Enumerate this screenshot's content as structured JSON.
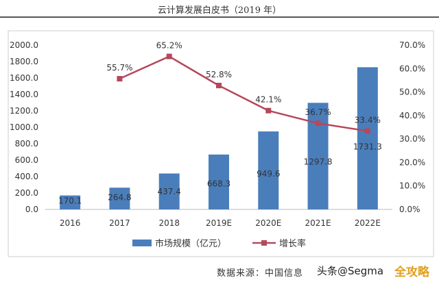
{
  "header": {
    "title": "云计算发展白皮书（2019 年）"
  },
  "footer": {
    "source": "数据来源：中国信息",
    "watermark": "头条@Segma",
    "watermark2": "全攻略"
  },
  "chart_data": {
    "type": "bar+line",
    "categories": [
      "2016",
      "2017",
      "2018",
      "2019E",
      "2020E",
      "2021E",
      "2022E"
    ],
    "series": [
      {
        "name": "市场规模（亿元）",
        "type": "bar",
        "axis": "left",
        "color": "#4a7ebb",
        "values": [
          170.1,
          264.8,
          437.4,
          668.3,
          949.6,
          1297.8,
          1731.3
        ],
        "labels": [
          "170.1",
          "264.8",
          "437.4",
          "668.3",
          "949.6",
          "1297.8",
          "1731.3"
        ]
      },
      {
        "name": "增长率",
        "type": "line",
        "axis": "right",
        "color": "#b5485b",
        "values": [
          null,
          55.7,
          65.2,
          52.8,
          42.1,
          36.7,
          33.4
        ],
        "labels": [
          "",
          "55.7%",
          "65.2%",
          "52.8%",
          "42.1%",
          "36.7%",
          "33.4%"
        ]
      }
    ],
    "y_left": {
      "range": [
        0,
        2000
      ],
      "ticks": [
        "0.0",
        "200.0",
        "400.0",
        "600.0",
        "800.0",
        "1000.0",
        "1200.0",
        "1400.0",
        "1600.0",
        "1800.0",
        "2000.0"
      ]
    },
    "y_right": {
      "range": [
        0,
        70
      ],
      "ticks": [
        "0.0%",
        "10.0%",
        "20.0%",
        "30.0%",
        "40.0%",
        "50.0%",
        "60.0%",
        "70.0%"
      ]
    },
    "grid": false,
    "legend": "bottom"
  }
}
